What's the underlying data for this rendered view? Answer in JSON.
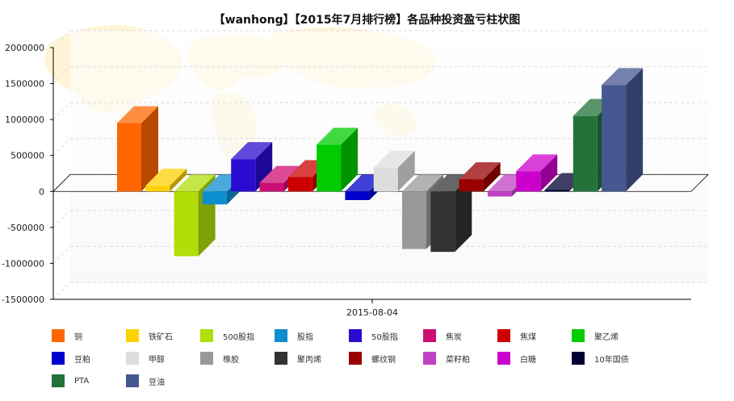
{
  "chart_data": {
    "type": "bar",
    "title": "【wanhong】【2015年7月排行榜】各品种投资盈亏柱状图",
    "categories": [
      "2015-08-04"
    ],
    "ylim": [
      -1500000,
      2000000
    ],
    "yticks": [
      "2000000",
      "1500000",
      "1000000",
      "500000",
      "0",
      "-500000",
      "-1000000",
      "-1500000"
    ],
    "ytick_values": [
      2000000,
      1500000,
      1000000,
      500000,
      0,
      -500000,
      -1000000,
      -1500000
    ],
    "grid": true,
    "legend_position": "bottom",
    "series": [
      {
        "name": "铜",
        "values": [
          950000
        ],
        "color": "#ff6600"
      },
      {
        "name": "铁矿石",
        "values": [
          80000
        ],
        "color": "#fcd202"
      },
      {
        "name": "500股指",
        "values": [
          -900000
        ],
        "color": "#b0de09"
      },
      {
        "name": "股指",
        "values": [
          -180000
        ],
        "color": "#0d8ecf"
      },
      {
        "name": "50股指",
        "values": [
          450000
        ],
        "color": "#2a0cd0"
      },
      {
        "name": "焦炭",
        "values": [
          120000
        ],
        "color": "#cd0d74"
      },
      {
        "name": "焦煤",
        "values": [
          200000
        ],
        "color": "#cc0000"
      },
      {
        "name": "聚乙烯",
        "values": [
          650000
        ],
        "color": "#00cc00"
      },
      {
        "name": "豆粕",
        "values": [
          -120000
        ],
        "color": "#0000cc"
      },
      {
        "name": "甲醇",
        "values": [
          330000
        ],
        "color": "#dddddd"
      },
      {
        "name": "橡胶",
        "values": [
          -800000
        ],
        "color": "#999999"
      },
      {
        "name": "聚丙烯",
        "values": [
          -840000
        ],
        "color": "#333333"
      },
      {
        "name": "螺纹钢",
        "values": [
          170000
        ],
        "color": "#990000"
      },
      {
        "name": "菜籽粕",
        "values": [
          -70000
        ],
        "color": "#c042c3"
      },
      {
        "name": "白糖",
        "values": [
          280000
        ],
        "color": "#cc00cc"
      },
      {
        "name": "10年国债",
        "values": [
          20000
        ],
        "color": "#000033"
      },
      {
        "name": "PTA",
        "values": [
          1050000
        ],
        "color": "#22723a"
      },
      {
        "name": "豆油",
        "values": [
          1480000
        ],
        "color": "#465891"
      }
    ]
  }
}
